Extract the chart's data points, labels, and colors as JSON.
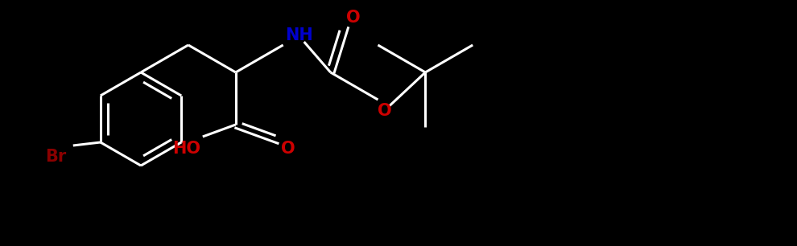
{
  "bg_color": "#000000",
  "bond_color": "#ffffff",
  "N_color": "#0000cd",
  "O_color": "#cc0000",
  "Br_color": "#8b0000",
  "label_NH": "NH",
  "label_O_carbonyl": "O",
  "label_O_ester": "O",
  "label_O_cooh": "O",
  "label_HO": "HO",
  "label_Br": "Br",
  "figsize": [
    9.9,
    3.06
  ],
  "dpi": 100,
  "lw": 2.2
}
